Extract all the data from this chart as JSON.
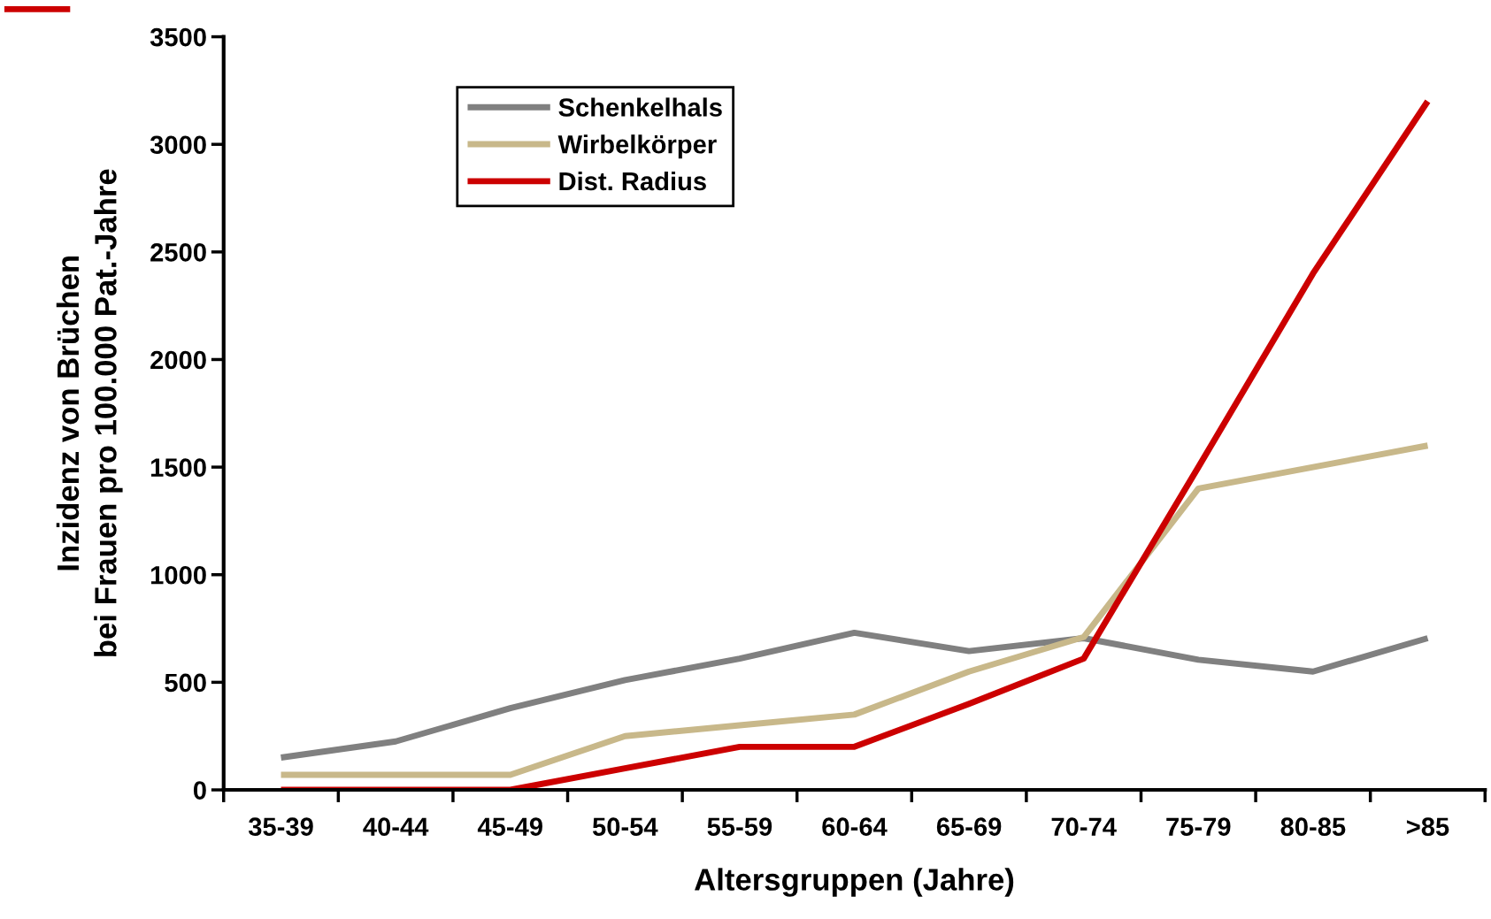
{
  "chart_data": {
    "type": "line",
    "xlabel": "Altersgruppen (Jahre)",
    "ylabel": "Inzidenz von Brüchen\nbei Frauen pro 100.000 Pat.-Jahre",
    "categories": [
      "35-39",
      "40-44",
      "45-49",
      "50-54",
      "55-59",
      "60-64",
      "65-69",
      "70-74",
      "75-79",
      "80-85",
      ">85"
    ],
    "series": [
      {
        "name": "Schenkelhals",
        "color": "#808080",
        "values": [
          150,
          225,
          380,
          510,
          610,
          730,
          645,
          705,
          605,
          550,
          705
        ]
      },
      {
        "name": "Wirbelkörper",
        "color": "#c8b88a",
        "values": [
          70,
          70,
          70,
          250,
          300,
          350,
          550,
          710,
          1400,
          1500,
          1600
        ]
      },
      {
        "name": "Dist. Radius",
        "color": "#cc0000",
        "values": [
          0,
          0,
          0,
          100,
          200,
          200,
          400,
          610,
          1500,
          2400,
          3200
        ]
      }
    ],
    "ylim": [
      0,
      3500
    ],
    "yticks": [
      0,
      500,
      1000,
      1500,
      2000,
      2500,
      3000,
      3500
    ],
    "grid": false,
    "legend": "top left",
    "marker": "none",
    "line_style": "solid"
  }
}
